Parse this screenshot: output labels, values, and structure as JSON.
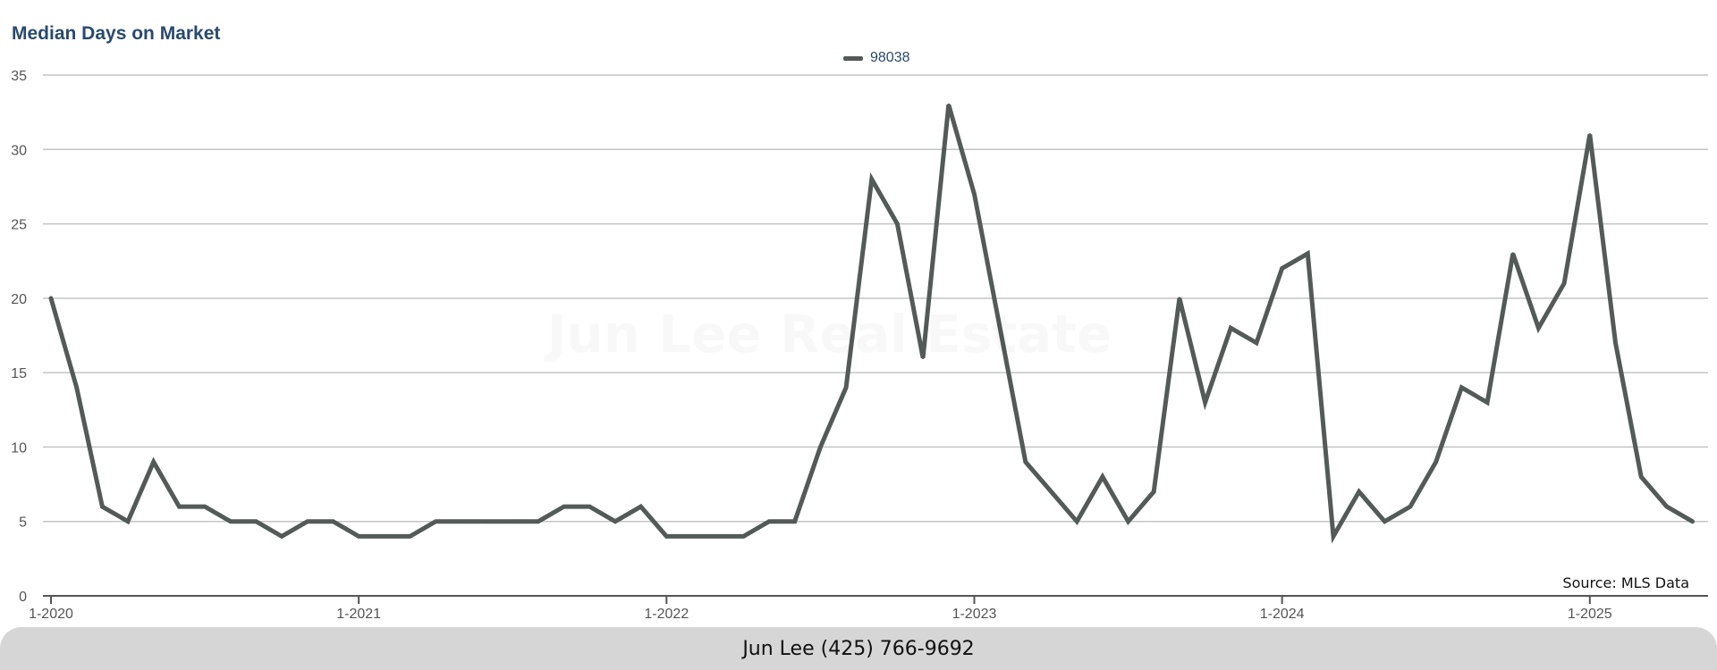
{
  "chart_data": {
    "type": "line",
    "title": "Median Days on Market",
    "xlabel": "",
    "ylabel": "",
    "ylim": [
      0,
      35
    ],
    "yticks": [
      0,
      5,
      10,
      15,
      20,
      25,
      30,
      35
    ],
    "xticks": [
      "1-2020",
      "1-2021",
      "1-2022",
      "1-2023",
      "1-2024",
      "1-2025"
    ],
    "grid": true,
    "legend_position": "top-center",
    "line_color": "#535a58",
    "x_start": "1-2020",
    "x_step": "1 month",
    "series": [
      {
        "name": "98038",
        "values": [
          20,
          14,
          6,
          5,
          9,
          6,
          6,
          5,
          5,
          4,
          5,
          5,
          4,
          4,
          4,
          5,
          5,
          5,
          5,
          5,
          6,
          6,
          5,
          6,
          4,
          4,
          4,
          4,
          5,
          5,
          10,
          14,
          28,
          25,
          16,
          33,
          27,
          18,
          9,
          7,
          5,
          8,
          5,
          7,
          20,
          13,
          18,
          17,
          22,
          23,
          4,
          7,
          5,
          6,
          9,
          14,
          13,
          23,
          18,
          21,
          31,
          17,
          8,
          6,
          5
        ]
      }
    ]
  },
  "watermark": "Jun Lee Real Estate",
  "source_text": "Source: MLS Data",
  "footer_text": "Jun Lee (425) 766-9692"
}
